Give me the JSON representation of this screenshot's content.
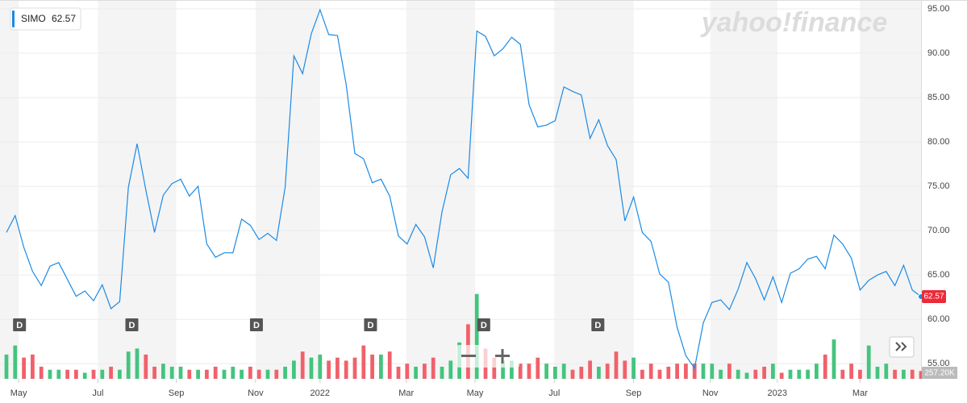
{
  "chart_data": {
    "type": "line",
    "series": [
      {
        "name": "SIMO",
        "color": "#1a8ae5",
        "values": [
          69.8,
          71.7,
          68.1,
          65.4,
          63.8,
          66.0,
          66.4,
          64.5,
          62.6,
          63.2,
          62.1,
          63.9,
          61.2,
          62.0,
          74.9,
          79.8,
          74.6,
          69.8,
          74.0,
          75.3,
          75.8,
          73.9,
          75.0,
          68.5,
          67.0,
          67.5,
          67.5,
          71.3,
          70.6,
          69.0,
          69.7,
          68.9,
          74.9,
          89.7,
          87.7,
          92.2,
          94.9,
          92.1,
          92.0,
          86.5,
          78.7,
          78.1,
          75.4,
          75.8,
          73.9,
          69.4,
          68.5,
          70.7,
          69.3,
          65.8,
          72.1,
          76.3,
          77.0,
          75.9,
          92.5,
          91.9,
          89.7,
          90.5,
          91.8,
          91.0,
          84.2,
          81.7,
          81.9,
          82.4,
          86.2,
          85.7,
          85.3,
          80.4,
          82.5,
          79.6,
          78.0,
          71.1,
          73.8,
          69.8,
          68.8,
          65.1,
          64.2,
          59.1,
          55.9,
          54.5,
          59.6,
          61.9,
          62.2,
          61.1,
          63.4,
          66.4,
          64.6,
          62.2,
          64.8,
          61.9,
          65.2,
          65.7,
          66.8,
          67.1,
          65.7,
          69.5,
          68.5,
          66.9,
          63.3,
          64.4,
          65.0,
          65.4,
          63.8,
          66.1,
          63.3,
          62.57
        ]
      }
    ],
    "volume": {
      "values": [
        800000,
        1100000,
        700000,
        800000,
        400000,
        300000,
        300000,
        300000,
        300000,
        200000,
        300000,
        300000,
        400000,
        300000,
        900000,
        1000000,
        800000,
        400000,
        500000,
        400000,
        400000,
        300000,
        300000,
        300000,
        400000,
        300000,
        400000,
        300000,
        400000,
        300000,
        300000,
        300000,
        400000,
        600000,
        900000,
        700000,
        800000,
        600000,
        700000,
        600000,
        700000,
        1100000,
        800000,
        800000,
        900000,
        400000,
        500000,
        400000,
        500000,
        700000,
        400000,
        600000,
        1200000,
        1800000,
        2800000,
        1000000,
        700000,
        600000,
        600000,
        500000,
        500000,
        700000,
        500000,
        400000,
        500000,
        300000,
        400000,
        600000,
        400000,
        500000,
        900000,
        600000,
        700000,
        300000,
        500000,
        300000,
        400000,
        500000,
        500000,
        500000,
        500000,
        500000,
        300000,
        500000,
        300000,
        200000,
        300000,
        400000,
        500000,
        200000,
        300000,
        300000,
        300000,
        500000,
        800000,
        1300000,
        300000,
        500000,
        300000,
        1100000,
        400000,
        500000,
        300000,
        300000,
        300000,
        257200
      ],
      "last_label": "257.20K",
      "up_color": "#44c47e",
      "down_color": "#f0616b",
      "vlim": [
        0,
        12500000
      ]
    },
    "xlim": [
      -0.74,
      105
    ],
    "xticks": [
      {
        "value": 1.4,
        "label": "May"
      },
      {
        "value": 10.5,
        "label": "Jul"
      },
      {
        "value": 19.5,
        "label": "Sep"
      },
      {
        "value": 28.6,
        "label": "Nov"
      },
      {
        "value": 36,
        "label": "2022"
      },
      {
        "value": 45.9,
        "label": "Mar"
      },
      {
        "value": 53.8,
        "label": "May"
      },
      {
        "value": 62.9,
        "label": "Jul"
      },
      {
        "value": 72,
        "label": "Sep"
      },
      {
        "value": 80.8,
        "label": "Nov"
      },
      {
        "value": 88.5,
        "label": "2023"
      },
      {
        "value": 98,
        "label": "Mar"
      }
    ],
    "ylim": [
      53.3,
      96
    ],
    "yticks": [
      {
        "value": 55,
        "label": "55.00"
      },
      {
        "value": 60,
        "label": "60.00"
      },
      {
        "value": 65,
        "label": "65.00"
      },
      {
        "value": 70,
        "label": "70.00"
      },
      {
        "value": 75,
        "label": "75.00"
      },
      {
        "value": 80,
        "label": "80.00"
      },
      {
        "value": 85,
        "label": "85.00"
      },
      {
        "value": 90,
        "label": "90.00"
      },
      {
        "value": 95,
        "label": "95.00"
      }
    ],
    "grid": true,
    "dividends": {
      "label": "D",
      "x": [
        1.5,
        14.4,
        28.7,
        41.8,
        54.8,
        67.9
      ]
    },
    "watermark": "yahoo!finance",
    "price_label_color": "#ec2a3a"
  }
}
